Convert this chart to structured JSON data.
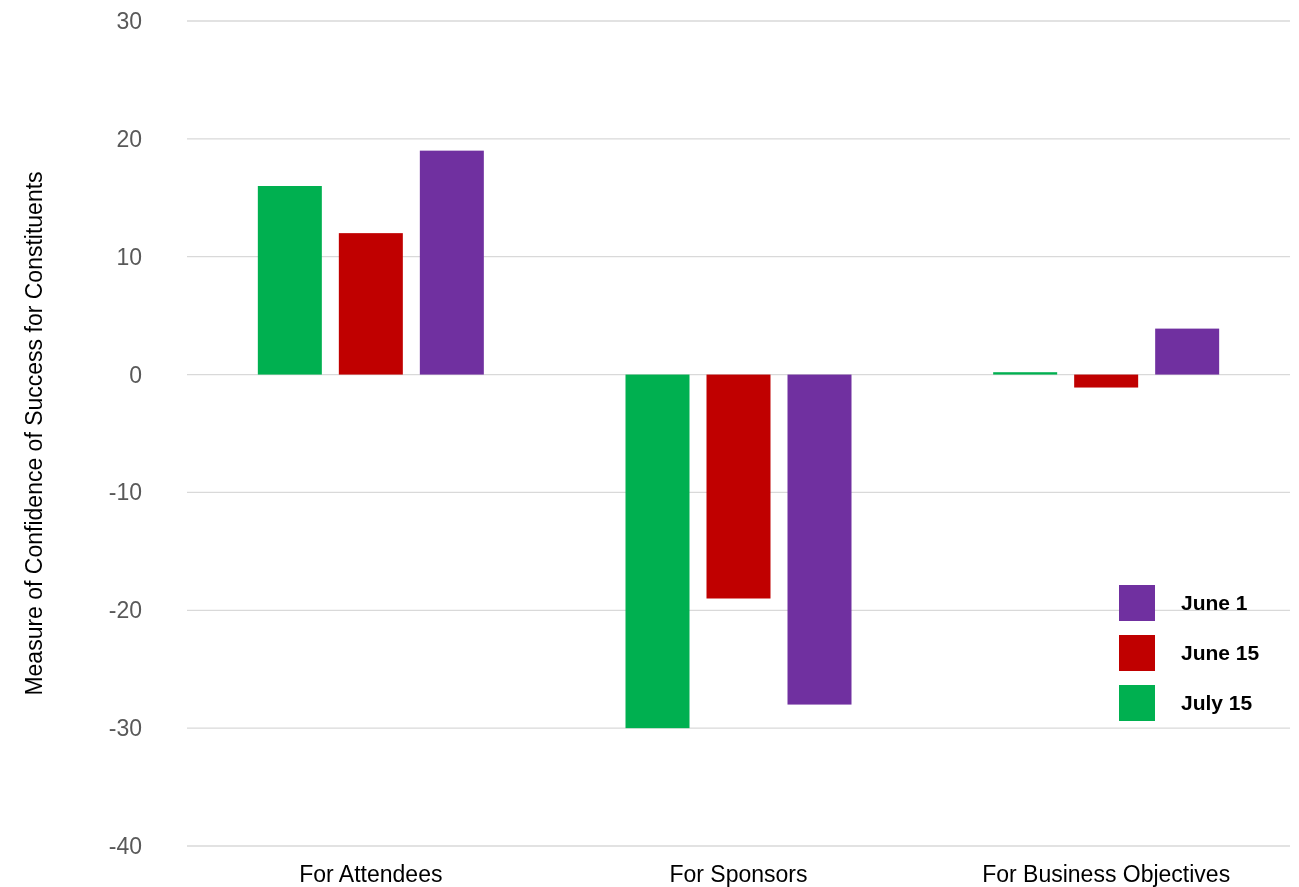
{
  "chart_data": {
    "type": "bar",
    "ylabel": "Measure of Confidence of Success for Constituents",
    "categories": [
      "For Attendees",
      "For Sponsors",
      "For Business Objectives"
    ],
    "series": [
      {
        "name": "July 15",
        "color": "#00b050",
        "values": [
          16,
          -30,
          0.2
        ]
      },
      {
        "name": "June 15",
        "color": "#c00000",
        "values": [
          12,
          -19,
          -1.1
        ]
      },
      {
        "name": "June 1",
        "color": "#7030a0",
        "values": [
          19,
          -28,
          3.9
        ]
      }
    ],
    "ylim": [
      -40,
      30
    ],
    "yticks": [
      -40,
      -30,
      -20,
      -10,
      0,
      10,
      20,
      30
    ],
    "grid": "y",
    "legend": "bottom right"
  }
}
